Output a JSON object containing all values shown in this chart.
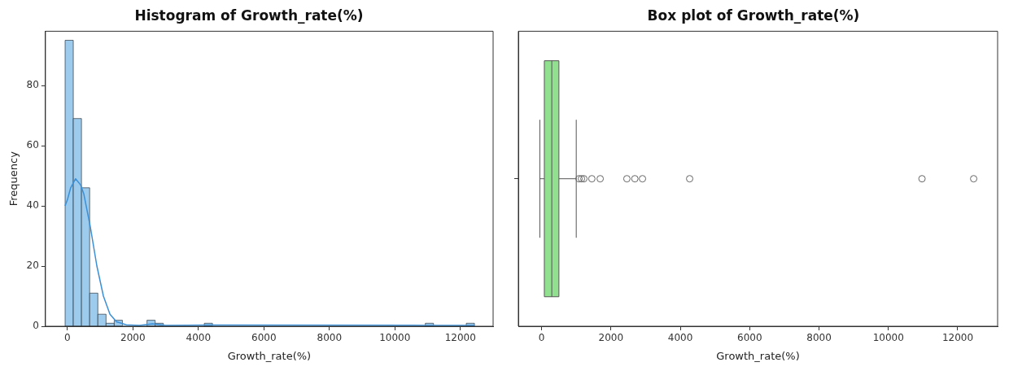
{
  "chart_data": [
    {
      "type": "histogram",
      "title": "Histogram of Growth_rate(%)",
      "xlabel": "Growth_rate(%)",
      "ylabel": "Frequency",
      "bins": [
        -70,
        180,
        430,
        680,
        930,
        1180,
        1430,
        1680,
        1930,
        2180,
        2430,
        2680,
        2930,
        3180,
        3430,
        3680,
        3930,
        4180,
        4430,
        4680,
        4930,
        5180,
        5430,
        5680,
        5930,
        6180,
        6430,
        6680,
        6930,
        7180,
        7430,
        7680,
        7930,
        8180,
        8430,
        8680,
        8930,
        9180,
        9430,
        9680,
        9930,
        10180,
        10430,
        10680,
        10930,
        11180,
        11430,
        11680,
        11930,
        12180,
        12430
      ],
      "values": [
        95,
        69,
        46,
        11,
        4,
        1,
        2,
        0,
        0,
        0,
        2,
        1,
        0,
        0,
        0,
        0,
        0,
        1,
        0,
        0,
        0,
        0,
        0,
        0,
        0,
        0,
        0,
        0,
        0,
        0,
        0,
        0,
        0,
        0,
        0,
        0,
        0,
        0,
        0,
        0,
        0,
        0,
        0,
        0,
        1,
        0,
        0,
        0,
        0,
        1
      ],
      "color": "#9ccbee",
      "series": [
        {
          "type": "line",
          "color": "#3b8fd6",
          "x": [
            -70,
            0,
            100,
            250,
            400,
            500,
            700,
            900,
            1100,
            1300,
            1500,
            1800,
            2200,
            2600,
            3000,
            4300,
            11000,
            12430
          ],
          "values": [
            40,
            42,
            46,
            49,
            47,
            44,
            33,
            20,
            10,
            4,
            1.5,
            0.5,
            0.3,
            0.8,
            0.3,
            0.4,
            0.3,
            0.3
          ]
        }
      ],
      "marker": "none",
      "line_style": "solid",
      "xlim": [
        -670,
        13000
      ],
      "xticks": [
        0,
        2000,
        4000,
        6000,
        8000,
        10000,
        12000
      ],
      "ylim": [
        0,
        98
      ],
      "yticks": [
        0,
        20,
        40,
        60,
        80
      ],
      "grid": false,
      "legend": false
    },
    {
      "type": "box",
      "title": "Box plot of Growth_rate(%)",
      "xlabel": "Growth_rate(%)",
      "orientation": "horizontal",
      "categories": [
        null
      ],
      "color": "#90e090",
      "boxes": [
        {
          "low": -50,
          "q1": 80,
          "median": 295,
          "q3": 500,
          "high": 1000,
          "outliers": [
            1080,
            1150,
            1220,
            1450,
            1690,
            2460,
            2690,
            2910,
            4270,
            10970,
            12460
          ]
        }
      ],
      "xlim": [
        -670,
        13150
      ],
      "xticks": [
        0,
        2000,
        4000,
        6000,
        8000,
        10000,
        12000
      ],
      "grid": false,
      "legend": false
    }
  ]
}
